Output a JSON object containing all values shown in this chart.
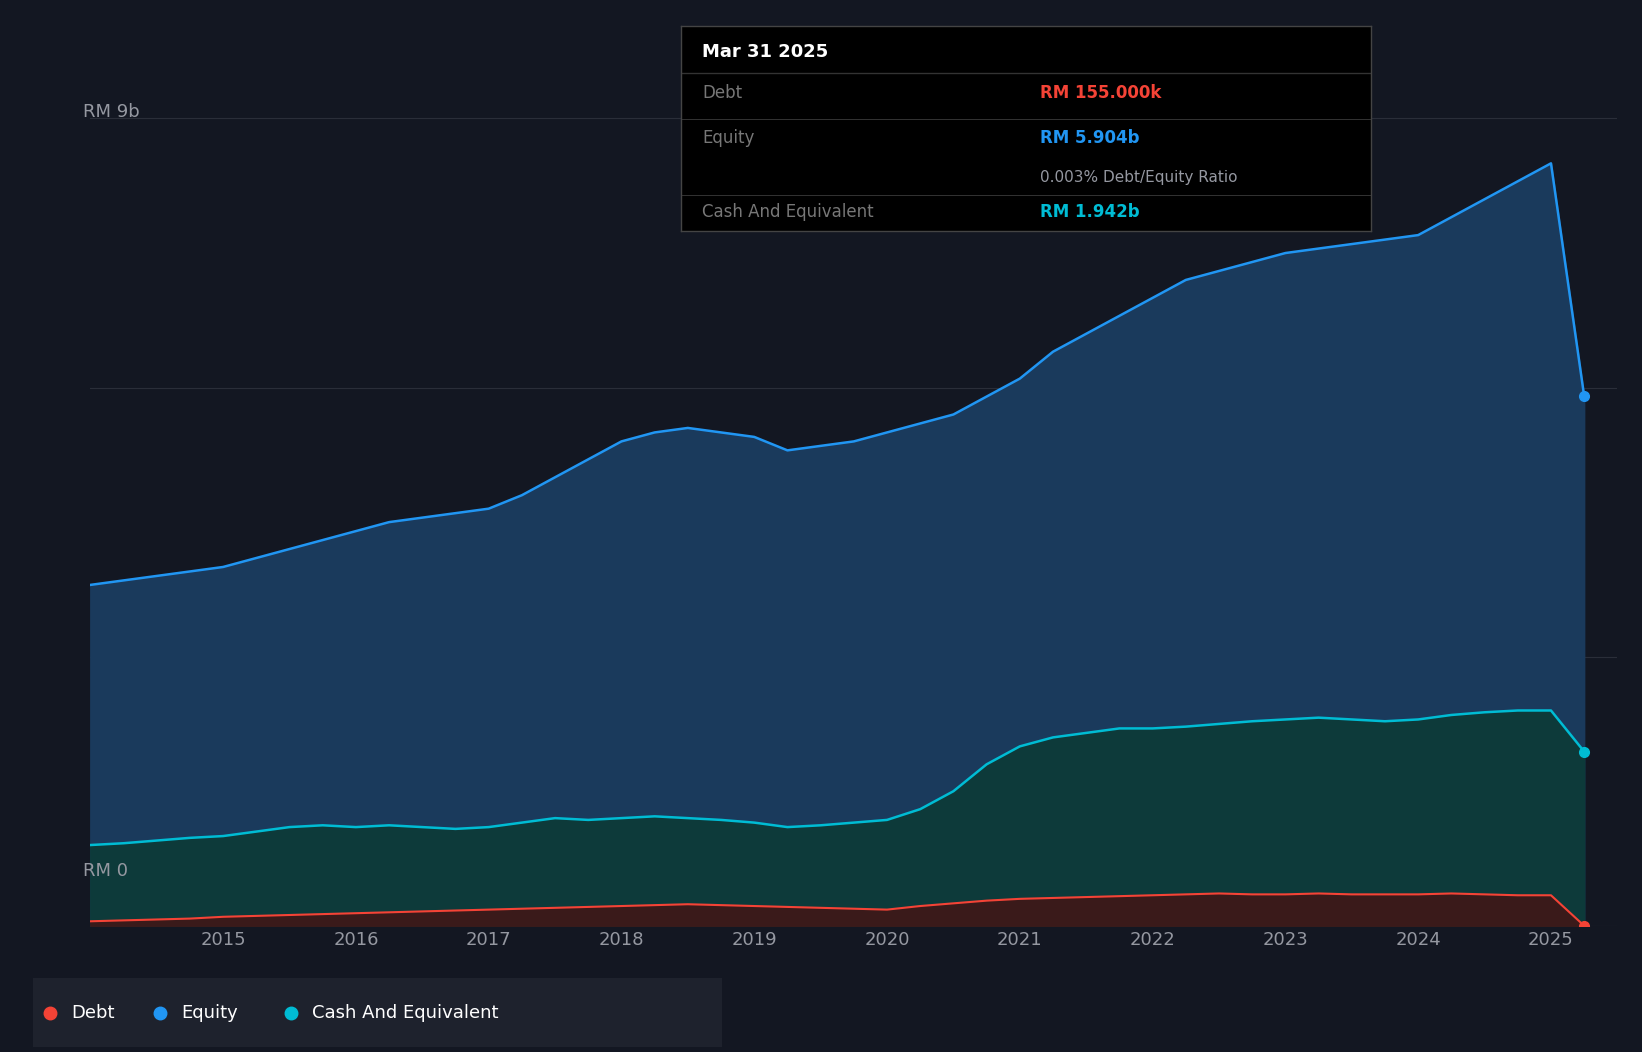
{
  "background_color": "#131722",
  "plot_bg_color": "#131722",
  "grid_color": "#2a2e39",
  "ylabel_9b": "RM 9b",
  "ylabel_0": "RM 0",
  "equity_color": "#2196f3",
  "equity_fill_color": "#1a3a5c",
  "debt_color": "#f44336",
  "debt_fill_color": "#3a1a1a",
  "cash_color": "#00bcd4",
  "cash_fill_color": "#0d3a3a",
  "legend_bg": "#1e222d",
  "years_x": [
    2014.0,
    2014.25,
    2014.5,
    2014.75,
    2015.0,
    2015.25,
    2015.5,
    2015.75,
    2016.0,
    2016.25,
    2016.5,
    2016.75,
    2017.0,
    2017.25,
    2017.5,
    2017.75,
    2018.0,
    2018.25,
    2018.5,
    2018.75,
    2019.0,
    2019.25,
    2019.5,
    2019.75,
    2020.0,
    2020.25,
    2020.5,
    2020.75,
    2021.0,
    2021.25,
    2021.5,
    2021.75,
    2022.0,
    2022.25,
    2022.5,
    2022.75,
    2023.0,
    2023.25,
    2023.5,
    2023.75,
    2024.0,
    2024.25,
    2024.5,
    2024.75,
    2025.0,
    2025.25
  ],
  "equity": [
    3.8,
    3.85,
    3.9,
    3.95,
    4.0,
    4.1,
    4.2,
    4.3,
    4.4,
    4.5,
    4.55,
    4.6,
    4.65,
    4.8,
    5.0,
    5.2,
    5.4,
    5.5,
    5.55,
    5.5,
    5.45,
    5.3,
    5.35,
    5.4,
    5.5,
    5.6,
    5.7,
    5.9,
    6.1,
    6.4,
    6.6,
    6.8,
    7.0,
    7.2,
    7.3,
    7.4,
    7.5,
    7.55,
    7.6,
    7.65,
    7.7,
    7.9,
    8.1,
    8.3,
    8.5,
    5.904
  ],
  "cash": [
    0.9,
    0.92,
    0.95,
    0.98,
    1.0,
    1.05,
    1.1,
    1.12,
    1.1,
    1.12,
    1.1,
    1.08,
    1.1,
    1.15,
    1.2,
    1.18,
    1.2,
    1.22,
    1.2,
    1.18,
    1.15,
    1.1,
    1.12,
    1.15,
    1.18,
    1.3,
    1.5,
    1.8,
    2.0,
    2.1,
    2.15,
    2.2,
    2.2,
    2.22,
    2.25,
    2.28,
    2.3,
    2.32,
    2.3,
    2.28,
    2.3,
    2.35,
    2.38,
    2.4,
    2.4,
    1.942
  ],
  "debt": [
    0.05,
    0.06,
    0.07,
    0.08,
    0.1,
    0.11,
    0.12,
    0.13,
    0.14,
    0.15,
    0.16,
    0.17,
    0.18,
    0.19,
    0.2,
    0.21,
    0.22,
    0.23,
    0.24,
    0.23,
    0.22,
    0.21,
    0.2,
    0.19,
    0.18,
    0.22,
    0.25,
    0.28,
    0.3,
    0.31,
    0.32,
    0.33,
    0.34,
    0.35,
    0.36,
    0.35,
    0.35,
    0.36,
    0.35,
    0.35,
    0.35,
    0.36,
    0.35,
    0.34,
    0.34,
    0.000155
  ],
  "ylim": [
    0,
    9.5
  ],
  "xlim": [
    2014.0,
    2025.5
  ],
  "x_ticks": [
    2015,
    2016,
    2017,
    2018,
    2019,
    2020,
    2021,
    2022,
    2023,
    2024,
    2025
  ],
  "grid_values": [
    0,
    3,
    6,
    9
  ],
  "tooltip_date": "Mar 31 2025",
  "tooltip_debt_label": "Debt",
  "tooltip_debt_value": "RM 155.000k",
  "tooltip_equity_label": "Equity",
  "tooltip_equity_value": "RM 5.904b",
  "tooltip_ratio": "0.003% Debt/Equity Ratio",
  "tooltip_cash_label": "Cash And Equivalent",
  "tooltip_cash_value": "RM 1.942b",
  "tick_color": "#9598a1",
  "label_color": "#777777"
}
